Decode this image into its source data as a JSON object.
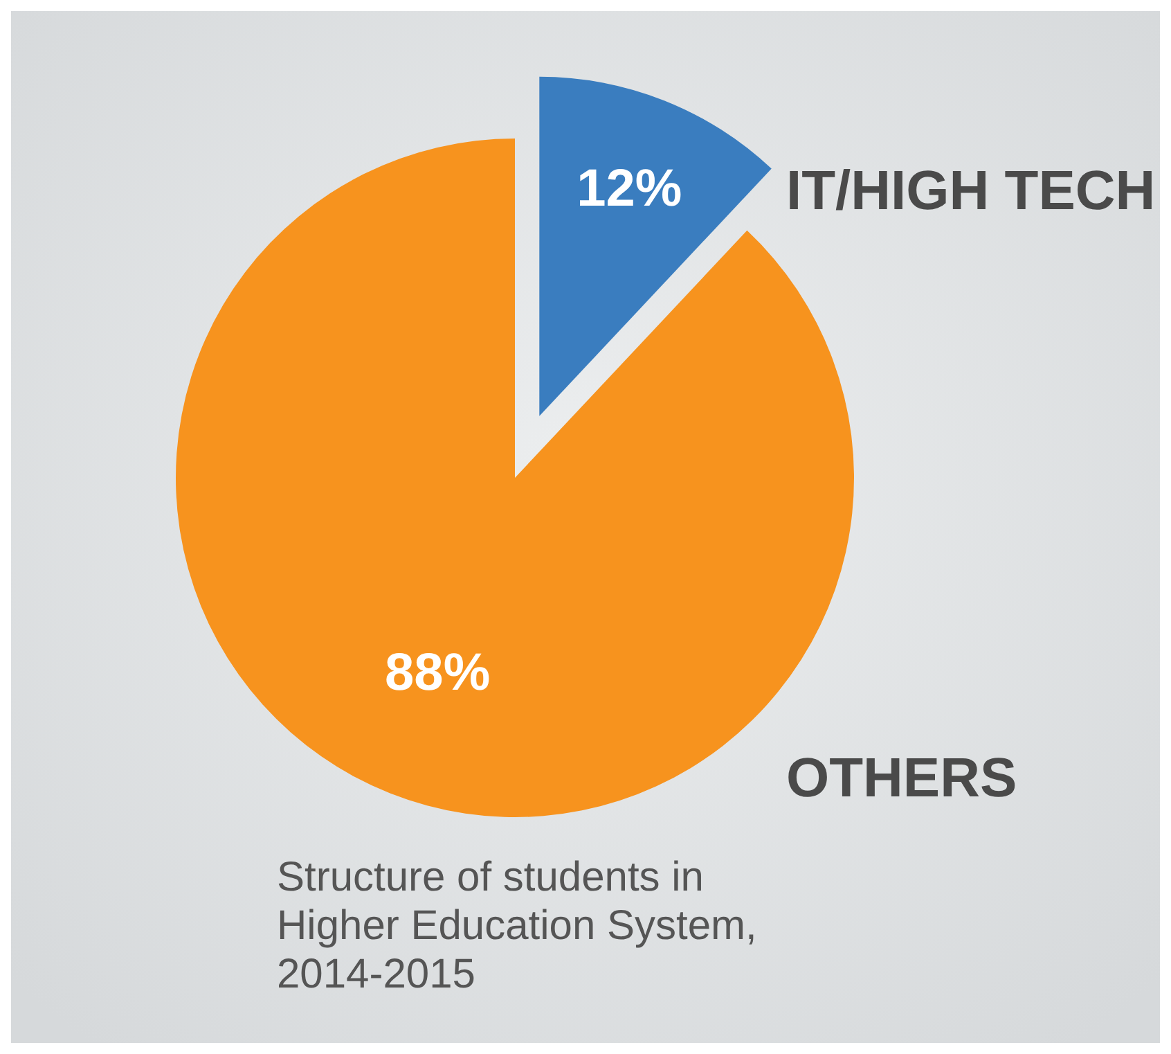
{
  "chart_data": {
    "type": "pie",
    "title": "Structure of students in Higher Education System, 2014-2015",
    "categories": [
      "IT/HIGH TECH",
      "OTHERS"
    ],
    "values": [
      12,
      88
    ],
    "colors": [
      "#3a7dbf",
      "#f7931e"
    ],
    "value_labels": [
      "12%",
      "88%"
    ],
    "legend": false
  }
}
